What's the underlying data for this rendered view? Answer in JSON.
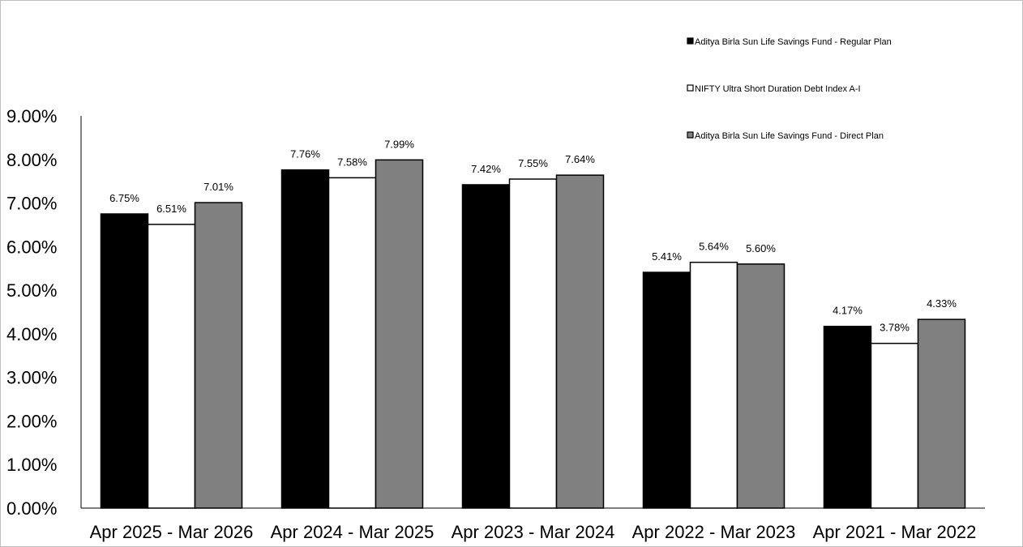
{
  "chart_data": {
    "type": "bar",
    "categories": [
      "Apr 2025 - Mar 2026",
      "Apr 2024 - Mar 2025",
      "Apr 2023 - Mar 2024",
      "Apr 2022 - Mar 2023",
      "Apr 2021 - Mar 2022"
    ],
    "series": [
      {
        "name": "Aditya Birla Sun Life Savings Fund - Regular Plan",
        "color": "#000000",
        "values": [
          6.75,
          7.76,
          7.42,
          5.41,
          4.17
        ],
        "labels": [
          "6.75%",
          "7.76%",
          "7.42%",
          "5.41%",
          "4.17%"
        ]
      },
      {
        "name": "NIFTY Ultra Short Duration Debt Index A-I",
        "color": "#ffffff",
        "values": [
          6.51,
          7.58,
          7.55,
          5.64,
          3.78
        ],
        "labels": [
          "6.51%",
          "7.58%",
          "7.55%",
          "5.64%",
          "3.78%"
        ]
      },
      {
        "name": "Aditya Birla Sun Life Savings Fund - Direct Plan",
        "color": "#808080",
        "values": [
          7.01,
          7.99,
          7.64,
          5.6,
          4.33
        ],
        "labels": [
          "7.01%",
          "7.99%",
          "7.64%",
          "5.60%",
          "4.33%"
        ]
      }
    ],
    "yticks": [
      "0.00%",
      "1.00%",
      "2.00%",
      "3.00%",
      "4.00%",
      "5.00%",
      "6.00%",
      "7.00%",
      "8.00%",
      "9.00%"
    ],
    "ylim": [
      0,
      9
    ],
    "title": "",
    "xlabel": "",
    "ylabel": "",
    "grid": false,
    "legend_position": "top-right"
  }
}
